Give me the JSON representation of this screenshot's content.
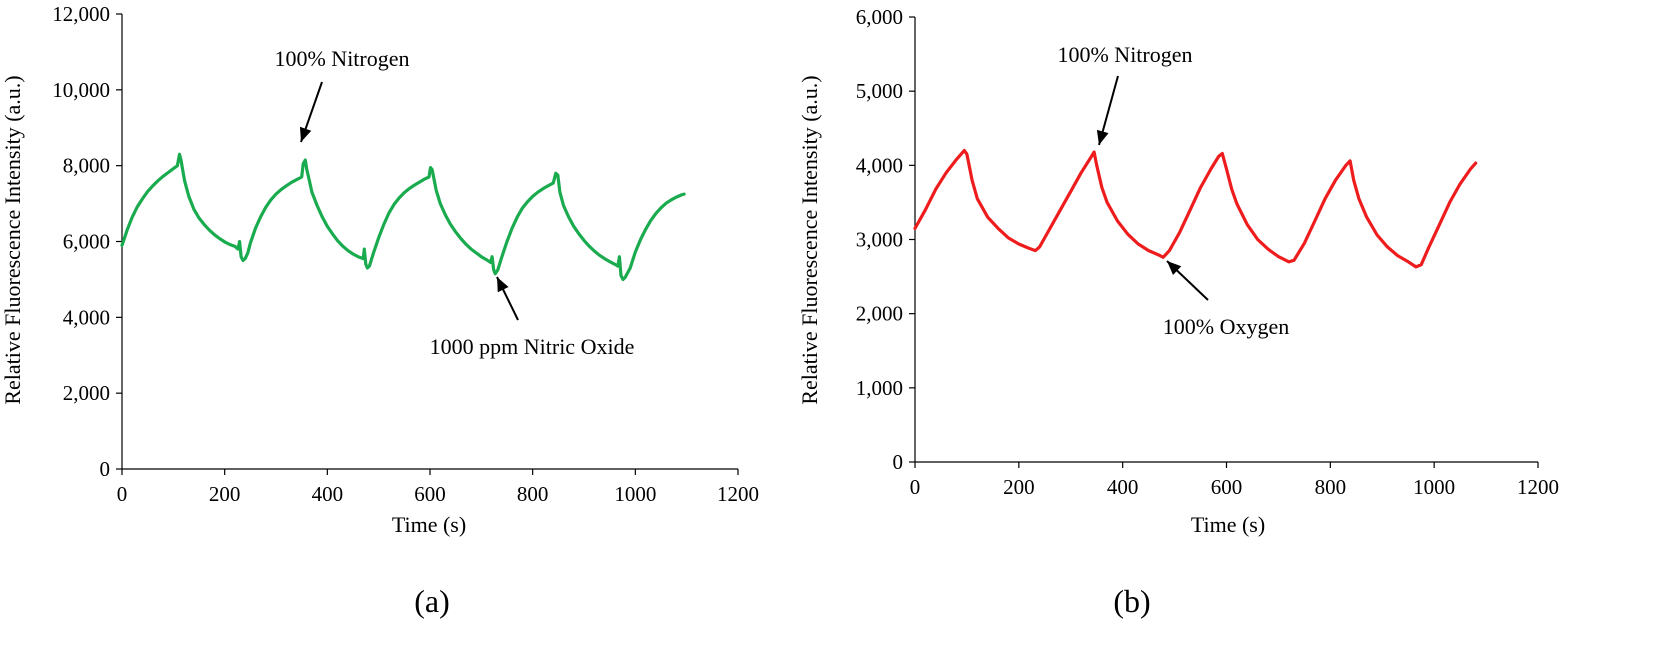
{
  "chart_data": [
    {
      "panel": "(a)",
      "type": "line",
      "xlabel": "Time (s)",
      "ylabel": "Relative Fluorescence Intensity (a.u.)",
      "xlim": [
        0,
        1200
      ],
      "ylim": [
        0,
        12000
      ],
      "x_ticks": [
        0,
        200,
        400,
        600,
        800,
        1000,
        1200
      ],
      "x_tick_labels": [
        "0",
        "200",
        "400",
        "600",
        "800",
        "1000",
        "1200"
      ],
      "y_ticks": [
        0,
        2000,
        4000,
        6000,
        8000,
        10000,
        12000
      ],
      "y_tick_labels": [
        "0",
        "2,000",
        "4,000",
        "6,000",
        "8,000",
        "10,000",
        "12,000"
      ],
      "grid": false,
      "series": [
        {
          "color": "#1aab4f",
          "x": [
            0,
            5,
            10,
            20,
            30,
            40,
            50,
            60,
            70,
            80,
            90,
            100,
            108,
            112,
            115,
            118,
            122,
            130,
            140,
            150,
            160,
            170,
            180,
            190,
            200,
            210,
            220,
            226,
            229,
            232,
            236,
            240,
            245,
            250,
            260,
            270,
            280,
            290,
            300,
            310,
            320,
            330,
            340,
            350,
            353,
            357,
            360,
            365,
            370,
            380,
            390,
            400,
            410,
            420,
            430,
            440,
            450,
            460,
            470,
            472,
            475,
            478,
            482,
            490,
            500,
            510,
            520,
            530,
            540,
            550,
            560,
            570,
            580,
            590,
            598,
            601,
            604,
            607,
            612,
            620,
            630,
            640,
            650,
            660,
            670,
            680,
            690,
            700,
            710,
            718,
            721,
            724,
            727,
            732,
            740,
            750,
            760,
            770,
            780,
            790,
            800,
            810,
            820,
            830,
            840,
            845,
            849,
            853,
            860,
            870,
            880,
            890,
            900,
            910,
            920,
            930,
            940,
            950,
            960,
            966,
            969,
            972,
            976,
            980,
            990,
            1000,
            1010,
            1020,
            1030,
            1040,
            1050,
            1060,
            1070,
            1080,
            1090,
            1095
          ],
          "y": [
            5900,
            6100,
            6300,
            6650,
            6920,
            7130,
            7320,
            7470,
            7600,
            7720,
            7820,
            7920,
            8000,
            8300,
            8150,
            7900,
            7600,
            7200,
            6850,
            6620,
            6450,
            6300,
            6180,
            6080,
            5990,
            5920,
            5870,
            5800,
            6000,
            5600,
            5500,
            5550,
            5700,
            5950,
            6350,
            6650,
            6900,
            7100,
            7250,
            7370,
            7470,
            7560,
            7630,
            7700,
            8050,
            8150,
            7900,
            7600,
            7300,
            6950,
            6650,
            6400,
            6200,
            6020,
            5880,
            5760,
            5670,
            5600,
            5550,
            5800,
            5400,
            5300,
            5350,
            5700,
            6100,
            6450,
            6750,
            6980,
            7150,
            7290,
            7400,
            7490,
            7570,
            7650,
            7700,
            7950,
            7900,
            7700,
            7350,
            7000,
            6700,
            6450,
            6250,
            6080,
            5930,
            5800,
            5700,
            5600,
            5520,
            5450,
            5600,
            5250,
            5150,
            5250,
            5600,
            6000,
            6350,
            6650,
            6880,
            7050,
            7190,
            7300,
            7390,
            7470,
            7540,
            7800,
            7750,
            7300,
            6950,
            6650,
            6400,
            6200,
            6030,
            5880,
            5750,
            5640,
            5550,
            5470,
            5400,
            5350,
            5600,
            5100,
            5000,
            5050,
            5300,
            5720,
            6050,
            6320,
            6550,
            6740,
            6890,
            7010,
            7100,
            7170,
            7230,
            7250
          ]
        }
      ],
      "annotations": [
        {
          "text": "100% Nitrogen",
          "x": 360,
          "y": 8150
        },
        {
          "text": "1000 ppm Nitric Oxide",
          "x": 725,
          "y": 5150
        }
      ],
      "caption": "(a)"
    },
    {
      "panel": "(b)",
      "type": "line",
      "xlabel": "Time (s)",
      "ylabel": "Relative Fluorescence Intensity (a.u.)",
      "xlim": [
        0,
        1200
      ],
      "ylim": [
        0,
        6000
      ],
      "x_ticks": [
        0,
        200,
        400,
        600,
        800,
        1000,
        1200
      ],
      "x_tick_labels": [
        "0",
        "200",
        "400",
        "600",
        "800",
        "1000",
        "1200"
      ],
      "y_ticks": [
        0,
        1000,
        2000,
        3000,
        4000,
        5000,
        6000
      ],
      "y_tick_labels": [
        "0",
        "1,000",
        "2,000",
        "3,000",
        "4,000",
        "5,000",
        "6,000"
      ],
      "grid": false,
      "series": [
        {
          "color": "#ee1c1c",
          "x": [
            0,
            20,
            40,
            60,
            80,
            95,
            100,
            110,
            120,
            140,
            160,
            180,
            200,
            220,
            232,
            240,
            260,
            280,
            300,
            320,
            340,
            345,
            350,
            360,
            370,
            390,
            410,
            430,
            450,
            470,
            478,
            490,
            510,
            530,
            550,
            570,
            585,
            592,
            600,
            610,
            620,
            640,
            660,
            680,
            700,
            720,
            730,
            750,
            770,
            790,
            810,
            830,
            838,
            845,
            855,
            870,
            890,
            910,
            930,
            950,
            965,
            975,
            990,
            1010,
            1030,
            1050,
            1070,
            1080
          ],
          "y": [
            3150,
            3400,
            3680,
            3900,
            4080,
            4200,
            4150,
            3800,
            3550,
            3300,
            3150,
            3020,
            2940,
            2880,
            2850,
            2900,
            3150,
            3400,
            3650,
            3900,
            4120,
            4180,
            4000,
            3700,
            3500,
            3250,
            3070,
            2940,
            2850,
            2790,
            2760,
            2850,
            3100,
            3400,
            3700,
            3950,
            4120,
            4160,
            3950,
            3680,
            3480,
            3200,
            3000,
            2870,
            2770,
            2700,
            2720,
            2950,
            3250,
            3550,
            3800,
            4000,
            4060,
            3800,
            3550,
            3300,
            3060,
            2900,
            2780,
            2700,
            2630,
            2660,
            2900,
            3200,
            3500,
            3750,
            3950,
            4030
          ]
        }
      ],
      "annotations": [
        {
          "text": "100% Nitrogen",
          "x": 345,
          "y": 4180
        },
        {
          "text": "100% Oxygen",
          "x": 478,
          "y": 2760
        }
      ],
      "caption": "(b)"
    }
  ]
}
